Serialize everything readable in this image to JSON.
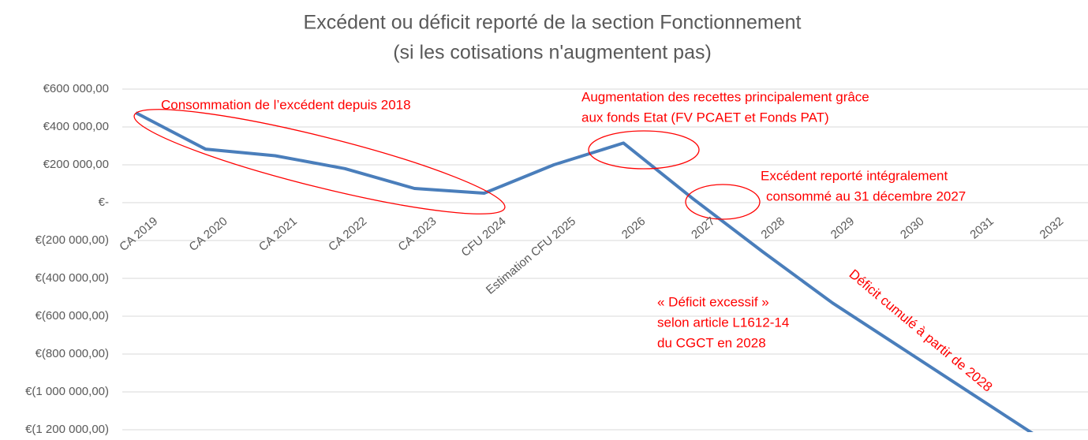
{
  "chart_data": {
    "type": "line",
    "title": "Excédent ou déficit reporté de la section Fonctionnement",
    "subtitle": "(si les cotisations n'augmentent pas)",
    "categories": [
      "CA 2019",
      "CA 2020",
      "CA 2021",
      "CA 2022",
      "CA 2023",
      "CFU 2024",
      "Estimation CFU 2025",
      "2026",
      "2027",
      "2028",
      "2029",
      "2030",
      "2031",
      "2032"
    ],
    "series": [
      {
        "name": "Excédent ou déficit reporté",
        "color": "#4a7ebb",
        "values": [
          475000,
          283000,
          248000,
          180000,
          75000,
          50000,
          200000,
          315000,
          20000,
          -260000,
          -530000,
          -770000,
          -1010000,
          -1250000
        ]
      }
    ],
    "ylim": [
      -1200000,
      600000
    ],
    "yticks": [
      {
        "value": 600000,
        "label": "€600 000,00"
      },
      {
        "value": 400000,
        "label": "€400 000,00"
      },
      {
        "value": 200000,
        "label": "€200 000,00"
      },
      {
        "value": 0,
        "label": "€-"
      },
      {
        "value": -200000,
        "label": "€(200 000,00)"
      },
      {
        "value": -400000,
        "label": "€(400 000,00)"
      },
      {
        "value": -600000,
        "label": "€(600 000,00)"
      },
      {
        "value": -800000,
        "label": "€(800 000,00)"
      },
      {
        "value": -1000000,
        "label": "€(1 000 000,00)"
      },
      {
        "value": -1200000,
        "label": "€(1 200 000,00)"
      }
    ],
    "grid": true,
    "annotations": [
      "Consommation de l’excédent depuis 2018",
      "Augmentation des recettes principalement grâce",
      "aux fonds Etat (FV PCAET et Fonds PAT)",
      "Excédent reporté intégralement",
      "consommé au 31 décembre 2027",
      "« Déficit excessif »",
      "selon article L1612-14",
      "du CGCT en 2028",
      "Déficit cumulé à partir de 2028"
    ]
  }
}
